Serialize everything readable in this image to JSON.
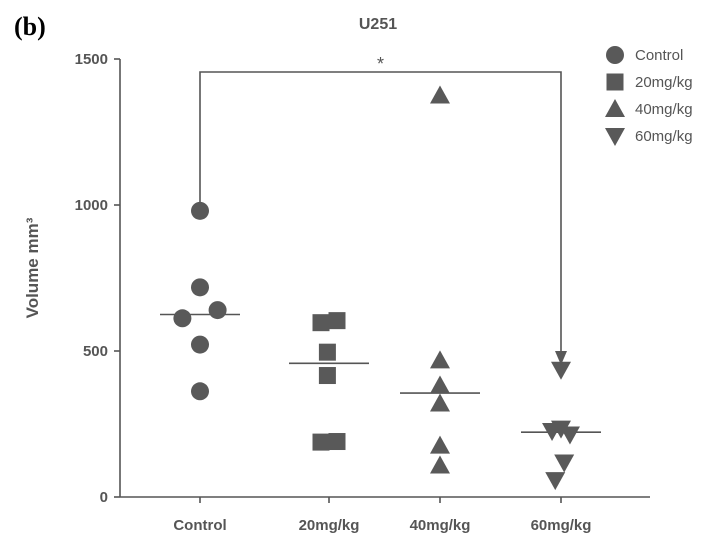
{
  "panel_label": "(b)",
  "chart_data": {
    "type": "scatter",
    "title": "U251",
    "ylabel": "Volume mm³",
    "xlabel": "",
    "ylim": [
      0,
      1500
    ],
    "yticks": [
      "0",
      "500",
      "1000",
      "1500"
    ],
    "categories": [
      "Control",
      "20mg/kg",
      "40mg/kg",
      "60mg/kg"
    ],
    "legend_position": "top-right",
    "color": "#595959",
    "series": [
      {
        "name": "Control",
        "marker": "circle",
        "points": [
          {
            "offset": 0.0,
            "y": 980
          },
          {
            "offset": 0.0,
            "y": 718
          },
          {
            "offset": 0.55,
            "y": 640
          },
          {
            "offset": -0.55,
            "y": 612
          },
          {
            "offset": 0.0,
            "y": 522
          },
          {
            "offset": 0.0,
            "y": 362
          }
        ],
        "median": 625
      },
      {
        "name": "20mg/kg",
        "marker": "square",
        "points": [
          {
            "offset": -0.25,
            "y": 597
          },
          {
            "offset": 0.25,
            "y": 604
          },
          {
            "offset": -0.05,
            "y": 496
          },
          {
            "offset": -0.05,
            "y": 416
          },
          {
            "offset": -0.25,
            "y": 188
          },
          {
            "offset": 0.25,
            "y": 190
          }
        ],
        "median": 458
      },
      {
        "name": "40mg/kg",
        "marker": "triangle-up",
        "points": [
          {
            "offset": 0.0,
            "y": 1375
          },
          {
            "offset": 0.0,
            "y": 468
          },
          {
            "offset": 0.0,
            "y": 382
          },
          {
            "offset": 0.0,
            "y": 320
          },
          {
            "offset": 0.0,
            "y": 176
          },
          {
            "offset": 0.0,
            "y": 108
          }
        ],
        "median": 356
      },
      {
        "name": "60mg/kg",
        "marker": "triangle-down",
        "points": [
          {
            "offset": 0.0,
            "y": 436
          },
          {
            "offset": -0.28,
            "y": 226
          },
          {
            "offset": 0.0,
            "y": 234
          },
          {
            "offset": 0.28,
            "y": 214
          },
          {
            "offset": 0.1,
            "y": 118
          },
          {
            "offset": -0.18,
            "y": 58
          }
        ],
        "median": 222
      }
    ],
    "annotations": [
      {
        "type": "significance",
        "from": "Control",
        "to": "60mg/kg",
        "label": "*"
      }
    ]
  }
}
